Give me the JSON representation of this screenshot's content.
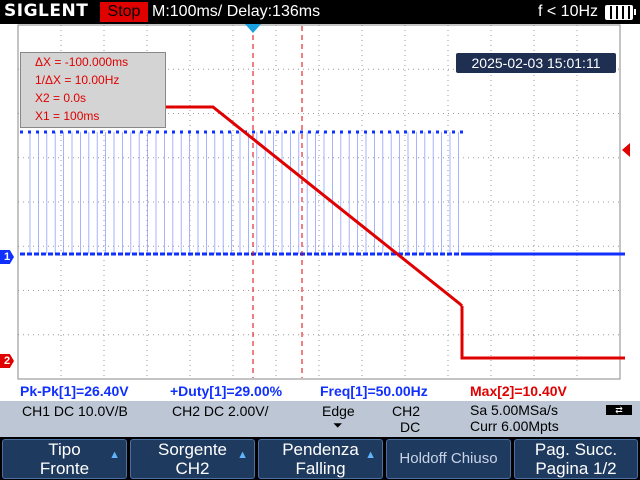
{
  "header": {
    "brand": "SIGLENT",
    "run_state": "Stop",
    "timebase": "M:100ms/ Delay:136ms",
    "frequency": "f < 10Hz",
    "battery_icon": "battery-icon"
  },
  "cursor_panel": {
    "dx": "ΔX = -100.000ms",
    "inv_dx": "1/ΔX = 10.00Hz",
    "x2": "X2 = 0.0s",
    "x1": "X1 = 100ms"
  },
  "datetime": "2025-02-03 15:01:11",
  "channel_markers": {
    "ch1": "1",
    "ch2": "2"
  },
  "measurements": {
    "pkpk": "Pk-Pk[1]=26.40V",
    "duty": "+Duty[1]=29.00%",
    "freq": "Freq[1]=50.00Hz",
    "max": "Max[2]=10.40V"
  },
  "status": {
    "ch1": "CH1 DC 10.0V/B",
    "ch2": "CH2 DC 2.00V/",
    "trigger_type": "Edge",
    "trigger_source": "CH2",
    "trigger_coupling": "DC",
    "sample_rate": "Sa 5.00MSa/s",
    "memory": "Curr 6.00Mpts",
    "usb_icon": "usb-icon"
  },
  "softkeys": [
    {
      "line1": "Tipo",
      "line2": "Fronte"
    },
    {
      "line1": "Sorgente",
      "line2": "CH2"
    },
    {
      "line1": "Pendenza",
      "line2": "Falling"
    },
    {
      "line1": "Holdoff",
      "line2": "Chiuso"
    },
    {
      "line1": "Pag. Succ.",
      "line2": "Pagina 1/2"
    }
  ],
  "colors": {
    "ch1": "#1030ff",
    "ch2": "#e00000",
    "status_bg": "#bcc6d4",
    "softkey_bg": "#1f3a5f"
  }
}
